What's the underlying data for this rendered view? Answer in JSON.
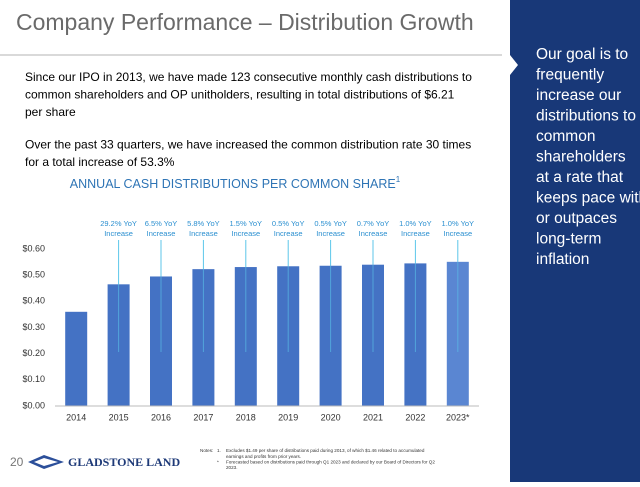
{
  "title": "Company Performance – Distribution Growth",
  "paragraphs": [
    [
      "Since our IPO in 2013, we have made 123 consecutive monthly cash distributions to",
      "common shareholders and OP unitholders, resulting in total distributions of $6.21",
      "per share"
    ],
    [
      "Over the past 33 quarters, we have increased the common distribution rate 30 times",
      "for a total increase of 53.3%"
    ]
  ],
  "sidebar": [
    "Our goal is to",
    "frequently",
    "increase our",
    "distributions to",
    "common",
    "shareholders",
    "at a rate that",
    "keeps pace with",
    "or outpaces",
    "long-term",
    "inflation"
  ],
  "footer": {
    "page_number": "20",
    "logo": "GLADSTONE LAND"
  },
  "notes": {
    "label": "Notes:",
    "items": [
      {
        "marker": "1.",
        "lines": [
          "Excludes $1.49 per share of distributions paid during 2013, of which $1.46 related to  accumulated",
          "earnings and profits from prior years."
        ]
      },
      {
        "marker": "*",
        "lines": [
          "Forecasted based on distributions paid through Q1 2023 and declared by our Board of Directors for Q2",
          "2023."
        ]
      }
    ]
  },
  "chart_data": {
    "type": "bar",
    "title": "ANNUAL CASH DISTRIBUTIONS PER COMMON SHARE",
    "title_note": "1",
    "categories": [
      "2014",
      "2015",
      "2016",
      "2017",
      "2018",
      "2019",
      "2020",
      "2021",
      "2022",
      "2023*"
    ],
    "values": [
      0.36,
      0.465,
      0.495,
      0.523,
      0.531,
      0.534,
      0.536,
      0.54,
      0.545,
      0.551
    ],
    "colors": [
      "#4472c4",
      "#4472c4",
      "#4472c4",
      "#4472c4",
      "#4472c4",
      "#4472c4",
      "#4472c4",
      "#4472c4",
      "#4472c4",
      "#5a86d2"
    ],
    "annotations": [
      null,
      [
        "29.2% YoY",
        "Increase"
      ],
      [
        "6.5% YoY",
        "Increase"
      ],
      [
        "5.8% YoY",
        "Increase"
      ],
      [
        "1.5% YoY",
        "Increase"
      ],
      [
        "0.5% YoY",
        "Increase"
      ],
      [
        "0.5% YoY",
        "Increase"
      ],
      [
        "0.7% YoY",
        "Increase"
      ],
      [
        "1.0% YoY",
        "Increase"
      ],
      [
        "1.0% YoY",
        "Increase"
      ]
    ],
    "ylim": [
      0,
      0.6
    ],
    "yticks": [
      {
        "value": 0,
        "label": "$0.00"
      },
      {
        "value": 0.1,
        "label": "$0.10"
      },
      {
        "value": 0.2,
        "label": "$0.20"
      },
      {
        "value": 0.3,
        "label": "$0.30"
      },
      {
        "value": 0.4,
        "label": "$0.40"
      },
      {
        "value": 0.5,
        "label": "$0.50"
      },
      {
        "value": 0.6,
        "label": "$0.60"
      }
    ],
    "grid": false
  }
}
